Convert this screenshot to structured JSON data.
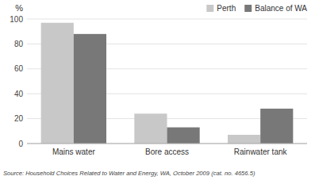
{
  "chart_data": {
    "type": "bar",
    "ylabel": "%",
    "categories": [
      "Mains water",
      "Bore access",
      "Rainwater tank"
    ],
    "series": [
      {
        "name": "Perth",
        "color": "#c8c8c8",
        "values": [
          97,
          24,
          7
        ]
      },
      {
        "name": "Balance of WA",
        "color": "#787878",
        "values": [
          88,
          13,
          28
        ]
      }
    ],
    "ylim": [
      0,
      100
    ],
    "yticks": [
      0,
      20,
      40,
      60,
      80,
      100
    ],
    "grid": true,
    "legend": "top-right",
    "annotations": [
      "Source: Household Choices Related to Water and Energy, WA, October 2009 (cat. no. 4656.5)"
    ]
  }
}
